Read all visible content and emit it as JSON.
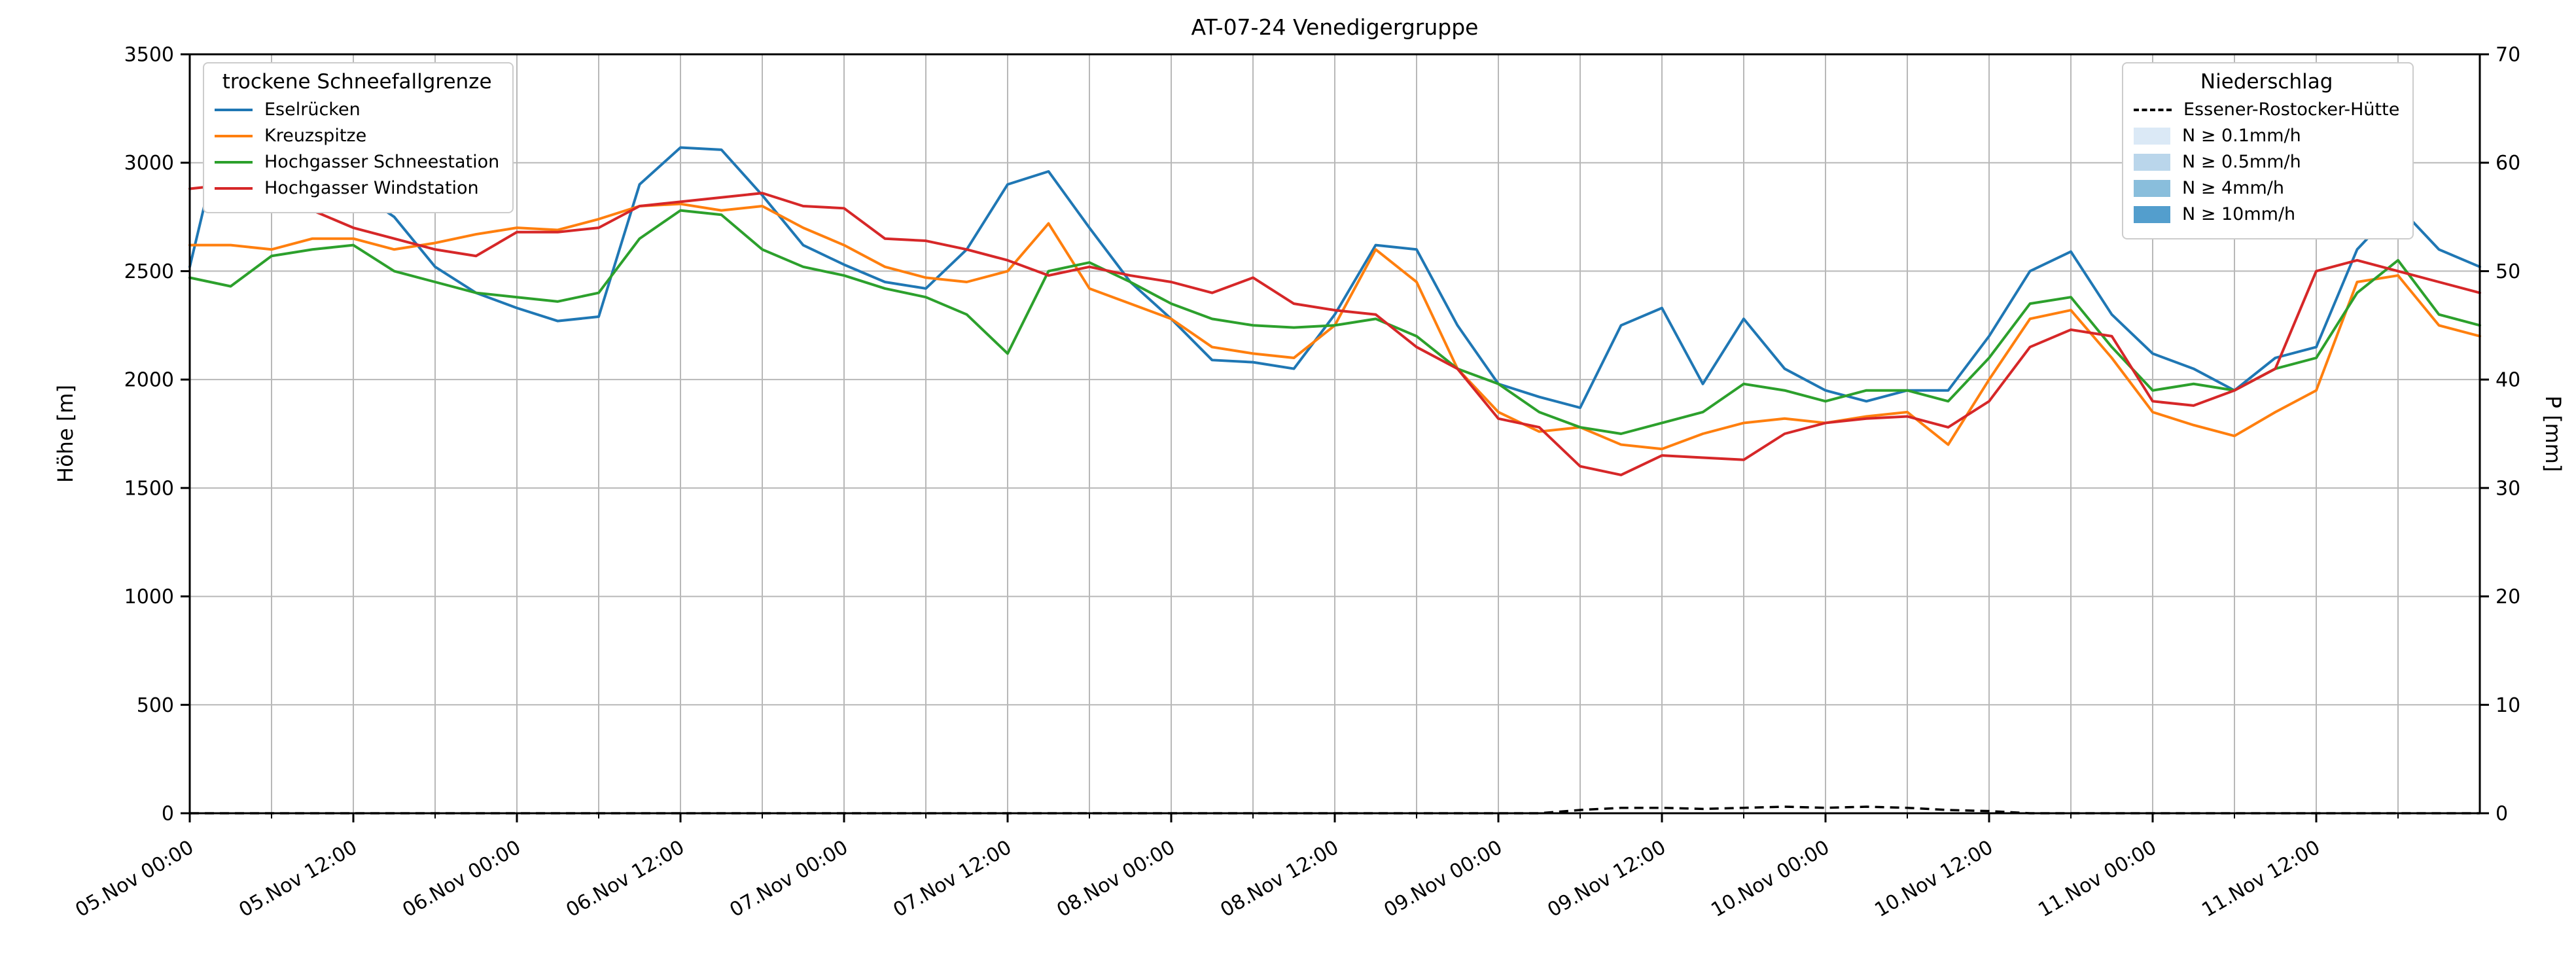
{
  "chart_data": {
    "type": "line",
    "title": "AT-07-24 Venedigergruppe",
    "ylabel_left": "Höhe [m]",
    "ylabel_right": "P [mm]",
    "ylim_left": [
      0,
      3500
    ],
    "ylim_right": [
      0,
      70
    ],
    "grid": true,
    "x_unit": "hours since 05.Nov 00:00",
    "x_range_hours": [
      0,
      168
    ],
    "x_hours": [
      0,
      3,
      6,
      9,
      12,
      15,
      18,
      21,
      24,
      27,
      30,
      33,
      36,
      39,
      42,
      45,
      48,
      51,
      54,
      57,
      60,
      63,
      66,
      69,
      72,
      75,
      78,
      81,
      84,
      87,
      90,
      93,
      96,
      99,
      102,
      105,
      108,
      111,
      114,
      117,
      120,
      123,
      126,
      129,
      132,
      135,
      138,
      141,
      144,
      147,
      150,
      153,
      156,
      159,
      162,
      165,
      168
    ],
    "x_tick_hours": [
      0,
      12,
      24,
      36,
      48,
      60,
      72,
      84,
      96,
      108,
      120,
      132,
      144,
      156
    ],
    "x_tick_labels": [
      "05.Nov 00:00",
      "05.Nov 12:00",
      "06.Nov 00:00",
      "06.Nov 12:00",
      "07.Nov 00:00",
      "07.Nov 12:00",
      "08.Nov 00:00",
      "08.Nov 12:00",
      "09.Nov 00:00",
      "09.Nov 12:00",
      "10.Nov 00:00",
      "10.Nov 12:00",
      "11.Nov 00:00",
      "11.Nov 12:00"
    ],
    "y_ticks_left": [
      0,
      500,
      1000,
      1500,
      2000,
      2500,
      3000,
      3500
    ],
    "y_ticks_right": [
      0,
      10,
      20,
      30,
      40,
      50,
      60,
      70
    ],
    "series": [
      {
        "id": "eselruecken",
        "name": "Eselrücken",
        "color": "#1f77b4",
        "values": [
          2520,
          3310,
          3300,
          2960,
          2880,
          2750,
          2520,
          2400,
          2330,
          2270,
          2290,
          2900,
          3070,
          3060,
          2850,
          2620,
          2530,
          2450,
          2420,
          2600,
          2900,
          2960,
          2700,
          2450,
          2280,
          2090,
          2080,
          2050,
          2300,
          2620,
          2600,
          2250,
          1980,
          1920,
          1870,
          2250,
          2330,
          1980,
          2280,
          2050,
          1950,
          1900,
          1950,
          1950,
          2200,
          2500,
          2590,
          2300,
          2120,
          2050,
          1950,
          2100,
          2150,
          2600,
          2800,
          2600,
          2520
        ]
      },
      {
        "id": "kreuzspitze",
        "name": "Kreuzspitze",
        "color": "#ff7f0e",
        "values": [
          2620,
          2620,
          2600,
          2650,
          2650,
          2600,
          2630,
          2670,
          2700,
          2690,
          2740,
          2800,
          2810,
          2780,
          2800,
          2700,
          2620,
          2520,
          2470,
          2450,
          2500,
          2720,
          2420,
          2350,
          2280,
          2150,
          2120,
          2100,
          2250,
          2600,
          2450,
          2050,
          1850,
          1760,
          1780,
          1700,
          1680,
          1750,
          1800,
          1820,
          1800,
          1830,
          1850,
          1700,
          2000,
          2280,
          2320,
          2100,
          1850,
          1790,
          1740,
          1850,
          1950,
          2450,
          2480,
          2250,
          2200
        ]
      },
      {
        "id": "hochgasser-schneestation",
        "name": "Hochgasser Schneestation",
        "color": "#2ca02c",
        "values": [
          2470,
          2430,
          2570,
          2600,
          2620,
          2500,
          2450,
          2400,
          2380,
          2360,
          2400,
          2650,
          2780,
          2760,
          2600,
          2520,
          2480,
          2420,
          2380,
          2300,
          2120,
          2500,
          2540,
          2450,
          2350,
          2280,
          2250,
          2240,
          2250,
          2280,
          2200,
          2050,
          1980,
          1850,
          1780,
          1750,
          1800,
          1850,
          1980,
          1950,
          1900,
          1950,
          1950,
          1900,
          2100,
          2350,
          2380,
          2150,
          1950,
          1980,
          1950,
          2050,
          2100,
          2400,
          2550,
          2300,
          2250
        ]
      },
      {
        "id": "hochgasser-windstation",
        "name": "Hochgasser Windstation",
        "color": "#d62728",
        "values": [
          2880,
          2900,
          2980,
          2780,
          2700,
          2650,
          2600,
          2570,
          2680,
          2680,
          2700,
          2800,
          2820,
          2840,
          2860,
          2800,
          2790,
          2650,
          2640,
          2600,
          2550,
          2480,
          2520,
          2480,
          2450,
          2400,
          2470,
          2350,
          2320,
          2300,
          2150,
          2050,
          1820,
          1780,
          1600,
          1560,
          1650,
          1640,
          1630,
          1750,
          1800,
          1820,
          1830,
          1780,
          1900,
          2150,
          2230,
          2200,
          1900,
          1880,
          1950,
          2050,
          2500,
          2550,
          2500,
          2450,
          2400
        ]
      }
    ],
    "precipitation": {
      "name": "Essener-Rostocker-Hütte",
      "style": "dashed",
      "color": "#000000",
      "axis": "right",
      "values": [
        0,
        0,
        0,
        0,
        0,
        0,
        0,
        0,
        0,
        0,
        0,
        0,
        0,
        0,
        0,
        0,
        0,
        0,
        0,
        0,
        0,
        0,
        0,
        0,
        0,
        0,
        0,
        0,
        0,
        0,
        0,
        0,
        0,
        0,
        0.3,
        0.5,
        0.5,
        0.4,
        0.5,
        0.6,
        0.5,
        0.6,
        0.5,
        0.3,
        0.2,
        0,
        0,
        0,
        0,
        0,
        0,
        0,
        0,
        0,
        0,
        0,
        0
      ]
    },
    "legend_left": {
      "title": "trockene Schneefallgrenze"
    },
    "legend_right": {
      "title": "Niederschlag",
      "line_entry": {
        "label": "Essener-Rostocker-Hütte",
        "style": "dashed",
        "color": "#000000"
      },
      "patch_entries": [
        {
          "label": "N ≥ 0.1mm/h",
          "color": "#dbe9f6"
        },
        {
          "label": "N ≥ 0.5mm/h",
          "color": "#bad6eb"
        },
        {
          "label": "N ≥ 4mm/h",
          "color": "#89bedc"
        },
        {
          "label": "N ≥ 10mm/h",
          "color": "#539ecd"
        }
      ]
    }
  }
}
